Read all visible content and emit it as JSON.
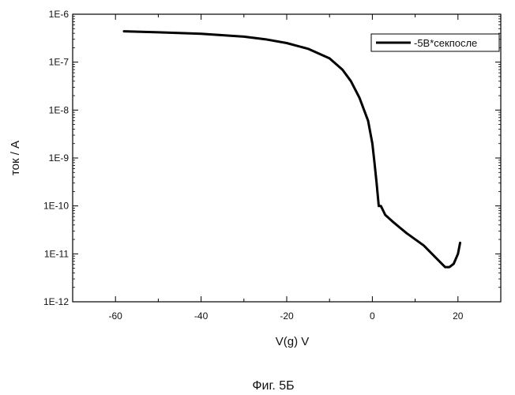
{
  "chart_data": {
    "type": "line",
    "title": "",
    "xlabel": "V(g) V",
    "ylabel": "ток  / A",
    "y_scale": "log",
    "xlim": [
      -70,
      30
    ],
    "ylim": [
      1e-12,
      1e-06
    ],
    "x_ticks": [
      -60,
      -40,
      -20,
      0,
      20
    ],
    "x_tick_labels": [
      "-60",
      "-40",
      "-20",
      "0",
      "20"
    ],
    "y_ticks": [
      1e-06,
      1e-07,
      1e-08,
      1e-09,
      1e-10,
      1e-11,
      1e-12
    ],
    "y_tick_labels": [
      "1E-6",
      "1E-7",
      "1E-8",
      "1E-9",
      "1E-10",
      "1E-11",
      "1E-12"
    ],
    "grid": false,
    "legend_position": "top-right",
    "series": [
      {
        "name": "-5В*секпосле",
        "color": "#000000",
        "x": [
          -58,
          -50,
          -40,
          -30,
          -25,
          -20,
          -15,
          -10,
          -7,
          -5,
          -3,
          -1,
          0,
          0.5,
          1,
          1.5,
          2,
          3,
          5,
          8,
          12,
          15,
          17,
          18,
          19,
          20,
          20.5
        ],
        "y": [
          4.4e-07,
          4.2e-07,
          3.9e-07,
          3.4e-07,
          3e-07,
          2.5e-07,
          1.9e-07,
          1.2e-07,
          7e-08,
          4e-08,
          1.8e-08,
          6e-09,
          2e-09,
          8e-10,
          3e-10,
          1e-10,
          1e-10,
          6.5e-11,
          4.5e-11,
          2.7e-11,
          1.5e-11,
          8e-12,
          5.3e-12,
          5.3e-12,
          6.2e-12,
          1e-11,
          1.7e-11
        ]
      }
    ]
  },
  "caption": "Фиг. 5Б"
}
